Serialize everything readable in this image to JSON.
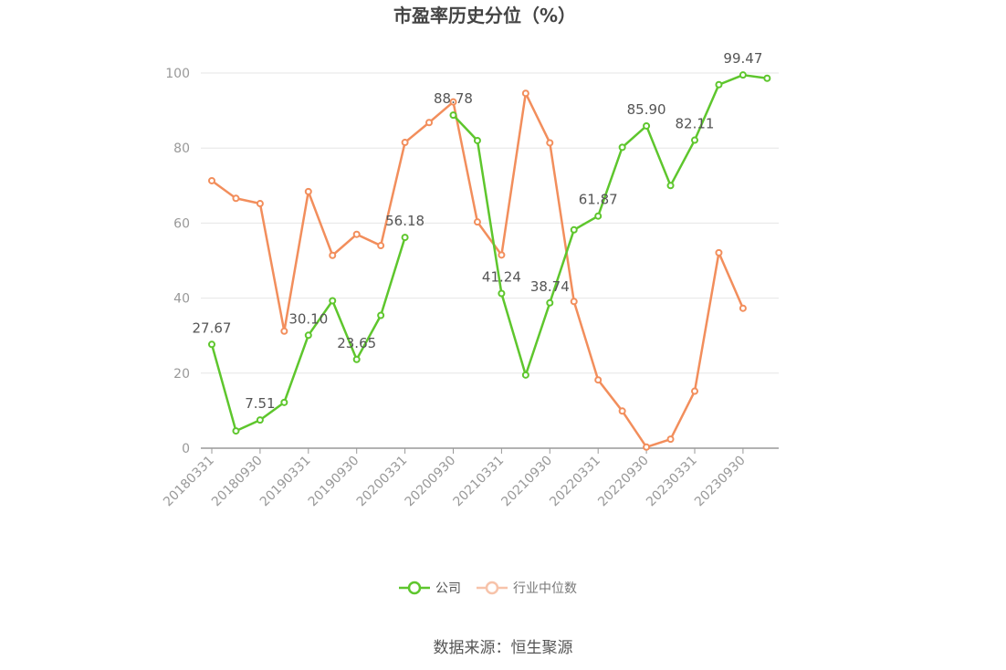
{
  "chart_data": {
    "type": "line",
    "title": "市盈率历史分位（%）",
    "x": [
      "20180331",
      "20180630",
      "20180930",
      "20181231",
      "20190331",
      "20190630",
      "20190930",
      "20191231",
      "20200331",
      "20200630",
      "20200930",
      "20201231",
      "20210331",
      "20210630",
      "20210930",
      "20211231",
      "20220331",
      "20220630",
      "20220930",
      "20221231",
      "20230331",
      "20230630",
      "20230930",
      "20231231"
    ],
    "x_tick_labels": [
      "20180331",
      "20180930",
      "20190331",
      "20190930",
      "20200331",
      "20200930",
      "20210331",
      "20210930",
      "20220331",
      "20220930",
      "20230331",
      "20230930"
    ],
    "ylim": [
      0,
      100
    ],
    "y_ticks": [
      0,
      20,
      40,
      60,
      80,
      100
    ],
    "grid": true,
    "legend_position": "bottom",
    "series": [
      {
        "name": "公司",
        "color": "#5ec62d",
        "values": [
          27.67,
          4.6,
          7.51,
          12.2,
          30.1,
          39.3,
          23.65,
          35.4,
          56.18,
          null,
          88.78,
          82.0,
          41.24,
          19.5,
          38.74,
          58.2,
          61.87,
          80.2,
          85.9,
          70.0,
          82.11,
          96.9,
          99.47,
          98.6
        ],
        "labeled_points": [
          {
            "x": "20180331",
            "label": "27.67"
          },
          {
            "x": "20180930",
            "label": "7.51"
          },
          {
            "x": "20190331",
            "label": "30.10"
          },
          {
            "x": "20190930",
            "label": "23.65"
          },
          {
            "x": "20200331",
            "label": "56.18"
          },
          {
            "x": "20200930",
            "label": "88.78"
          },
          {
            "x": "20210331",
            "label": "41.24"
          },
          {
            "x": "20210930",
            "label": "38.74"
          },
          {
            "x": "20220331",
            "label": "61.87"
          },
          {
            "x": "20220930",
            "label": "85.90"
          },
          {
            "x": "20230331",
            "label": "82.11"
          },
          {
            "x": "20230930",
            "label": "99.47"
          }
        ]
      },
      {
        "name": "行业中位数",
        "color": "#f28e5c",
        "values": [
          71.3,
          66.6,
          65.2,
          31.2,
          68.4,
          51.4,
          57.0,
          54.0,
          81.5,
          86.8,
          92.3,
          60.3,
          51.5,
          94.6,
          81.4,
          39.1,
          18.2,
          9.9,
          0.3,
          2.4,
          15.2,
          52.1,
          37.3,
          null
        ]
      }
    ]
  },
  "source_text": "数据来源：恒生聚源"
}
